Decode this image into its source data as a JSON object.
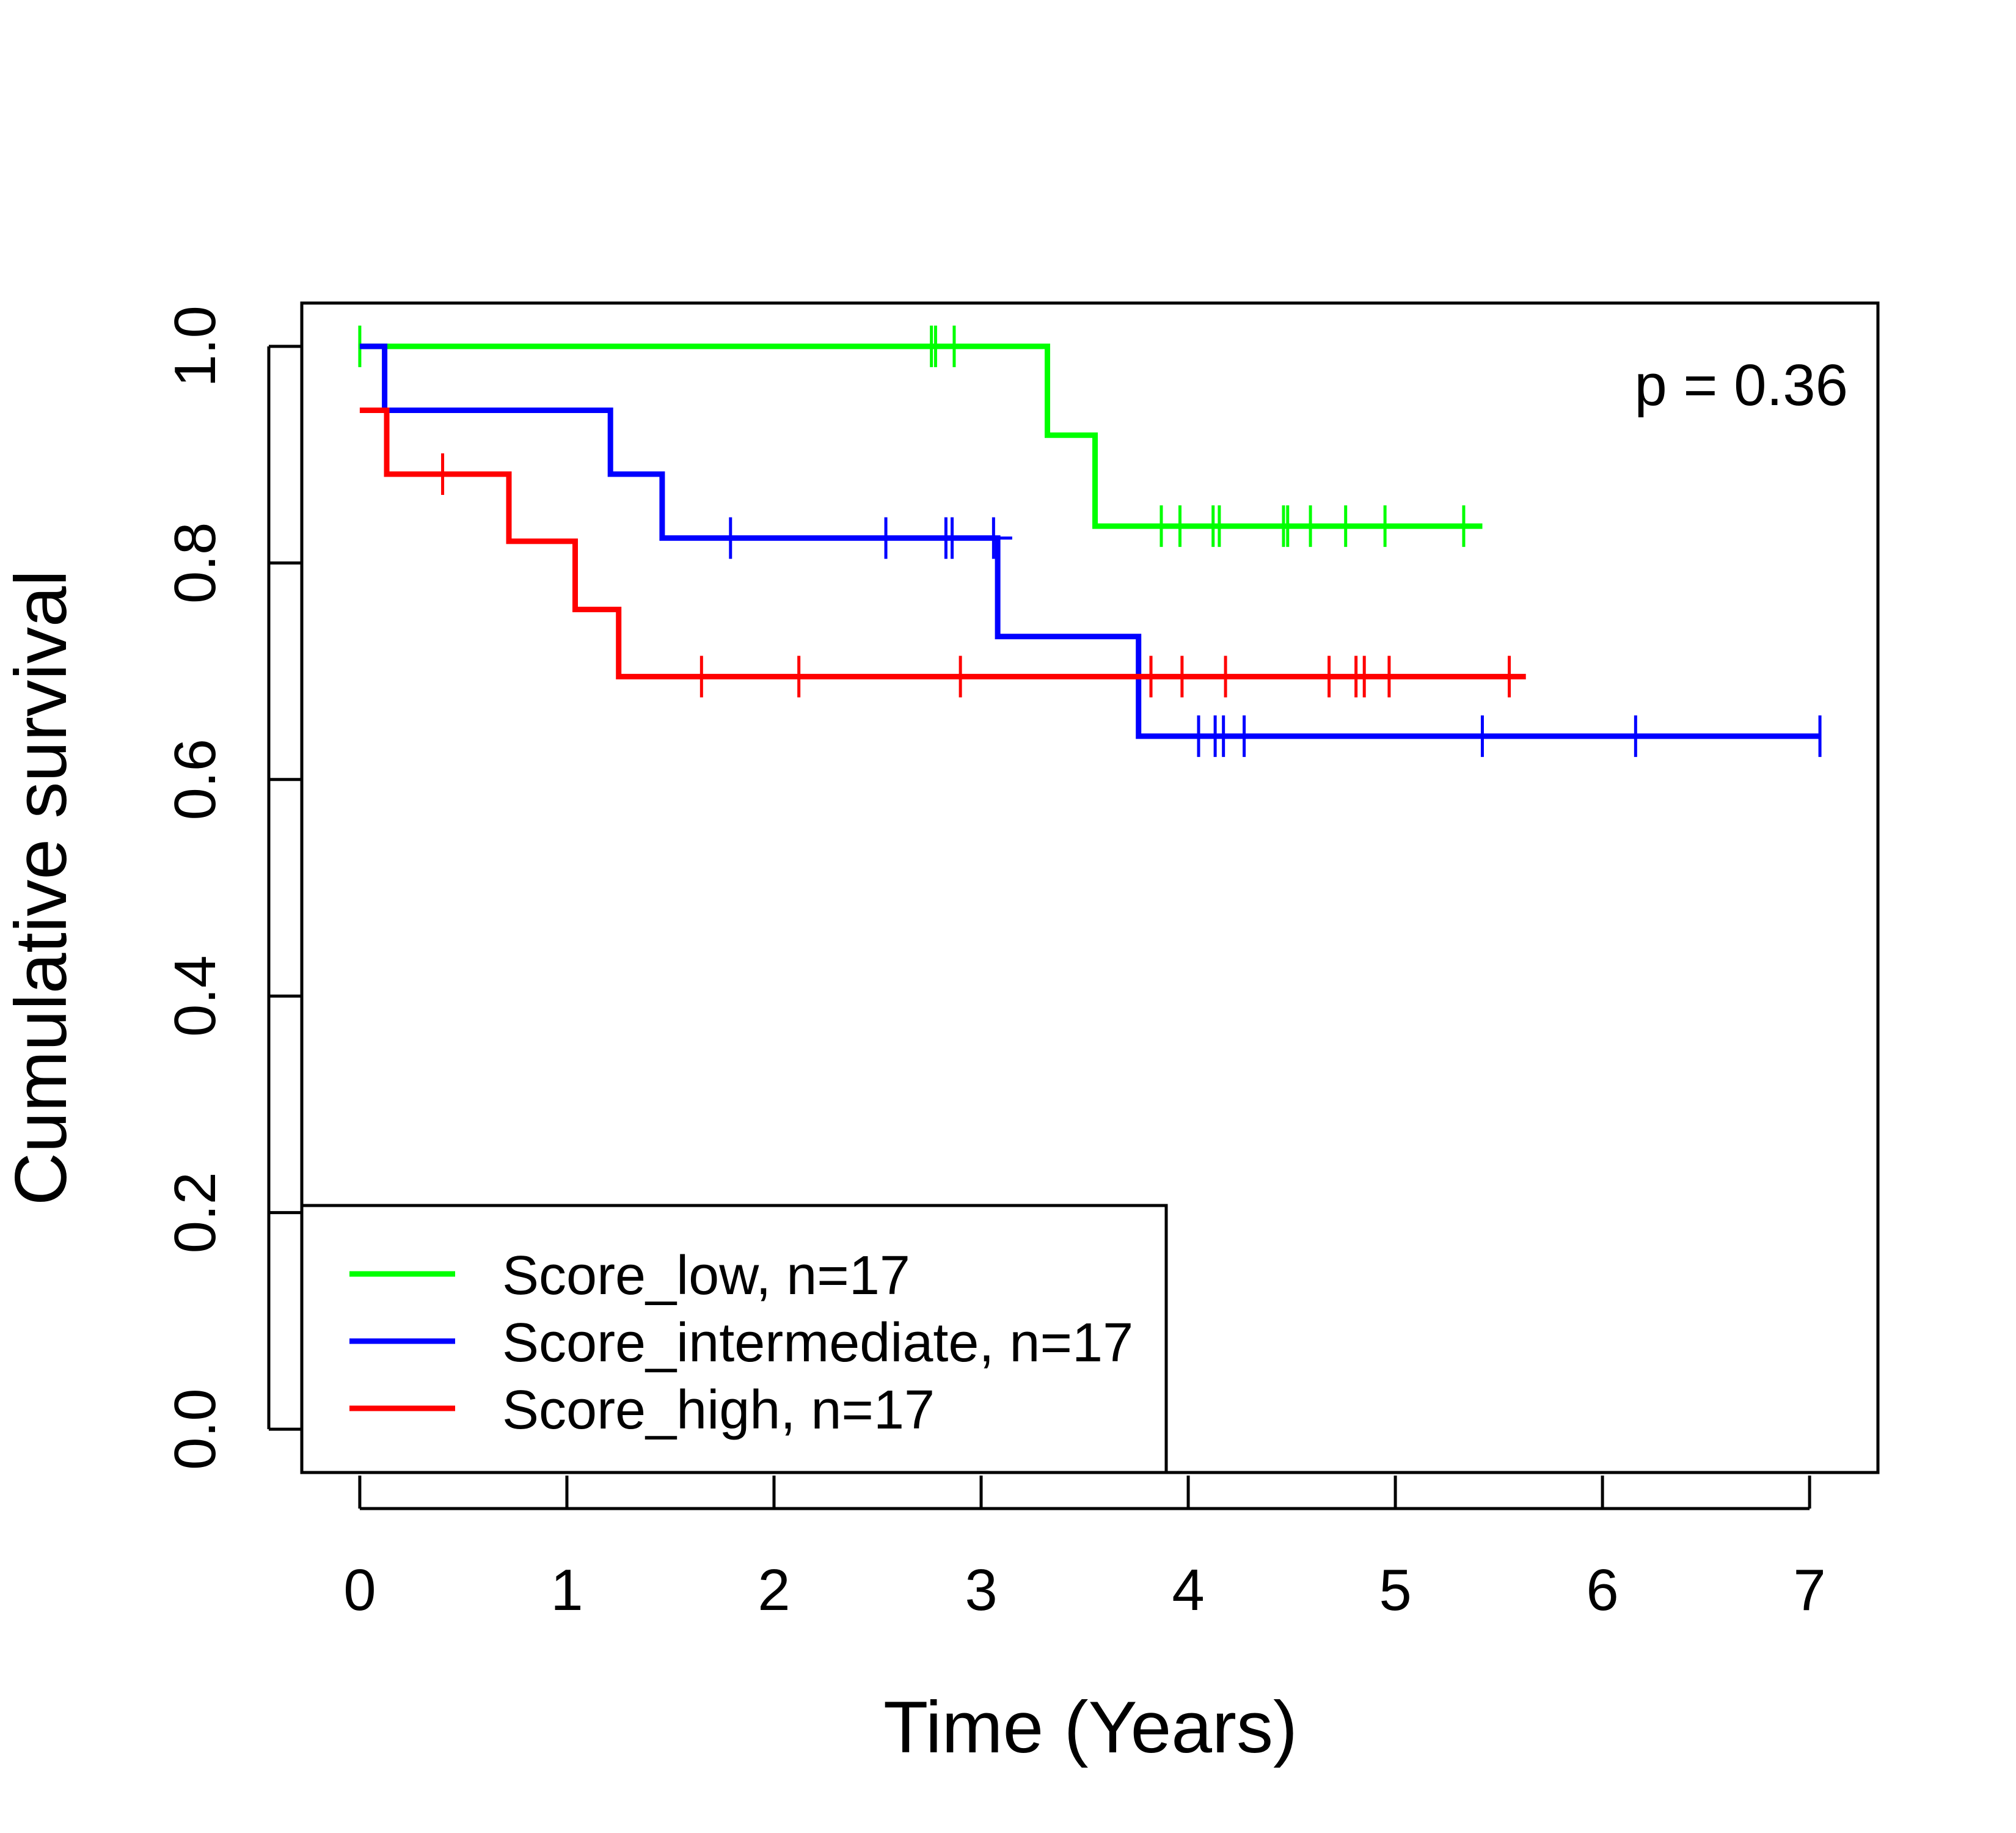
{
  "chart_data": {
    "type": "line",
    "title": "",
    "xlabel": "Time (Years)",
    "ylabel": "Cumulative survival",
    "xlim": [
      -0.28,
      7.33
    ],
    "ylim": [
      -0.04,
      1.04
    ],
    "xticks": [
      "0",
      "1",
      "2",
      "3",
      "4",
      "5",
      "6",
      "7"
    ],
    "yticks": [
      "0.0",
      "0.2",
      "0.4",
      "0.6",
      "0.8",
      "1.0"
    ],
    "grid": false,
    "legend_position": "bottom-left",
    "annotation": "p = 0.36",
    "series": [
      {
        "name": "Score_low, n=17",
        "color": "#00ff00",
        "steps": [
          [
            0,
            1.0
          ],
          [
            3.32,
            1.0
          ],
          [
            3.32,
            0.918
          ],
          [
            3.55,
            0.918
          ],
          [
            3.55,
            0.834
          ],
          [
            5.42,
            0.834
          ]
        ],
        "censor": [
          0.0,
          2.76,
          2.78,
          2.87,
          3.87,
          3.96,
          4.12,
          4.15,
          4.46,
          4.48,
          4.59,
          4.76,
          4.95,
          5.33
        ]
      },
      {
        "name": "Score_intermediate, n=17",
        "color": "#0000ff",
        "steps": [
          [
            0,
            1.0
          ],
          [
            0.12,
            1.0
          ],
          [
            0.12,
            0.941
          ],
          [
            1.21,
            0.941
          ],
          [
            1.21,
            0.882
          ],
          [
            1.46,
            0.882
          ],
          [
            1.46,
            0.823
          ],
          [
            3.08,
            0.823
          ],
          [
            3.08,
            0.732
          ],
          [
            3.76,
            0.732
          ],
          [
            3.76,
            0.64
          ],
          [
            7.05,
            0.64
          ]
        ],
        "censor": [
          1.79,
          2.54,
          2.83,
          2.86,
          3.06,
          4.05,
          4.13,
          4.17,
          4.27,
          5.42,
          6.16,
          7.05
        ],
        "tail_segment": [
          3.08,
          3.15,
          0.823
        ]
      },
      {
        "name": "Score_high, n=17",
        "color": "#ff0000",
        "steps": [
          [
            0,
            0.941
          ],
          [
            0.13,
            0.941
          ],
          [
            0.13,
            0.882
          ],
          [
            0.72,
            0.882
          ],
          [
            0.72,
            0.82
          ],
          [
            1.04,
            0.82
          ],
          [
            1.04,
            0.757
          ],
          [
            1.25,
            0.757
          ],
          [
            1.25,
            0.695
          ],
          [
            5.63,
            0.695
          ]
        ],
        "censor": [
          0.4,
          1.65,
          2.12,
          2.9,
          3.82,
          3.97,
          4.18,
          4.68,
          4.81,
          4.85,
          4.97,
          5.55
        ]
      }
    ]
  }
}
